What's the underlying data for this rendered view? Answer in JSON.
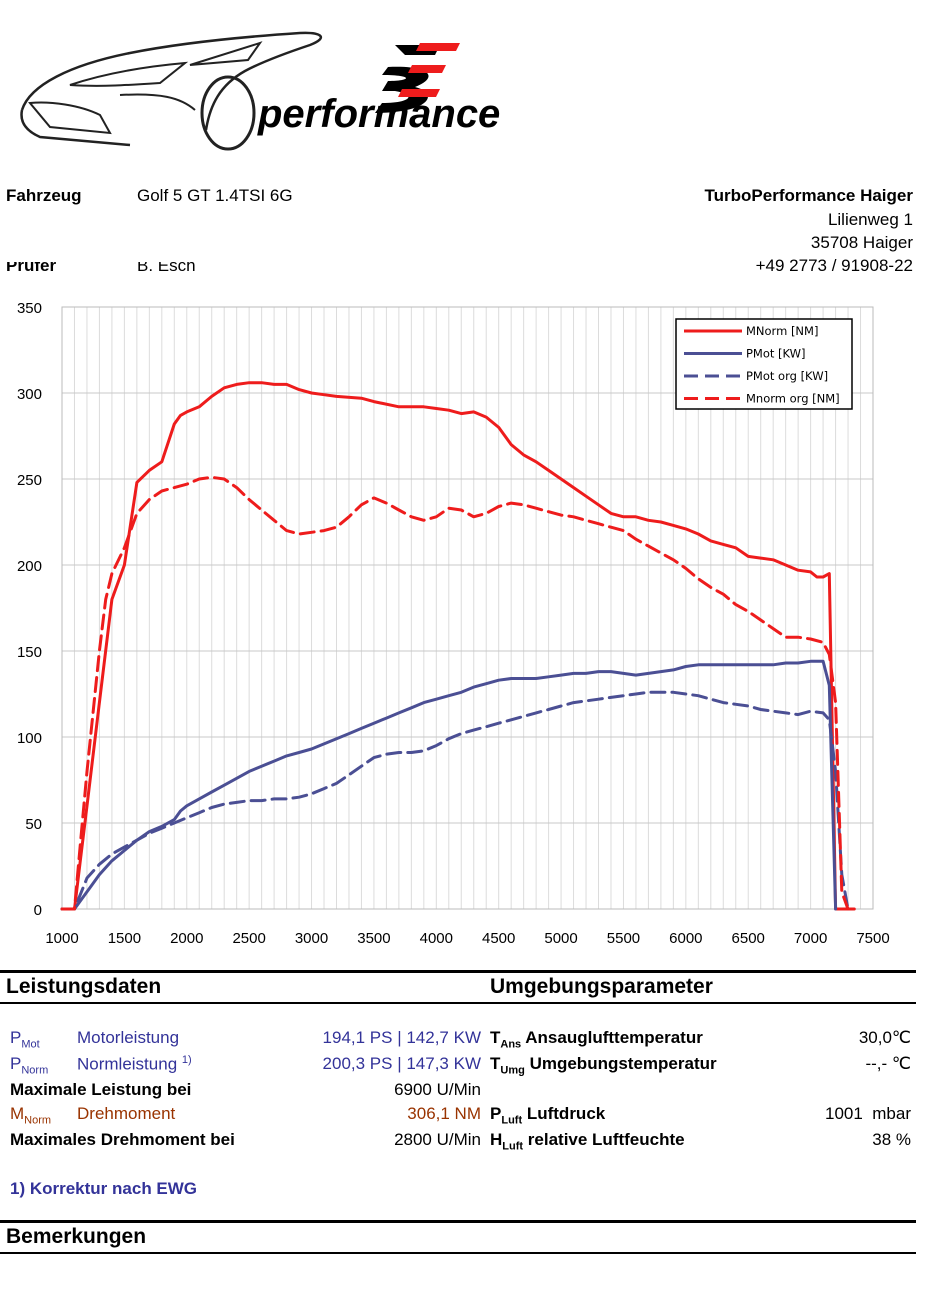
{
  "logo": {
    "brand_letters": "BE",
    "brand_text": "performance"
  },
  "header": {
    "vehicle_label": "Fahrzeug",
    "vehicle_value": "Golf 5 GT 1.4TSI 6G",
    "tester_label": "Prüfer",
    "tester_value": "B. Esch",
    "company": "TurboPerformance Haiger",
    "street": "Lilienweg 1",
    "city": "35708 Haiger",
    "phone": "+49 2773 / 91908-22"
  },
  "chart_data": {
    "type": "line",
    "xlim": [
      1000,
      7500
    ],
    "ylim": [
      0,
      350
    ],
    "x_ticks": [
      "1000",
      "1500",
      "2000",
      "2500",
      "3000",
      "3500",
      "4000",
      "4500",
      "5000",
      "5500",
      "6000",
      "6500",
      "7000",
      "7500"
    ],
    "y_ticks": [
      "0",
      "50",
      "100",
      "150",
      "200",
      "250",
      "300",
      "350"
    ],
    "grid": true,
    "legend_placement": "top-right",
    "series": [
      {
        "name": "MNorm [NM]",
        "color": "#ee1c1c",
        "dash": "solid",
        "x": [
          1000,
          1100,
          1150,
          1200,
          1300,
          1400,
          1500,
          1600,
          1700,
          1800,
          1900,
          1950,
          2000,
          2100,
          2200,
          2300,
          2400,
          2500,
          2600,
          2700,
          2800,
          2900,
          3000,
          3100,
          3200,
          3400,
          3500,
          3700,
          3900,
          4000,
          4100,
          4200,
          4300,
          4400,
          4500,
          4600,
          4700,
          4800,
          4900,
          5000,
          5100,
          5200,
          5300,
          5400,
          5500,
          5600,
          5700,
          5800,
          5900,
          6000,
          6100,
          6200,
          6300,
          6400,
          6500,
          6600,
          6700,
          6800,
          6900,
          7000,
          7050,
          7100,
          7150,
          7200,
          7250,
          7350
        ],
        "y": [
          0,
          0,
          30,
          60,
          120,
          180,
          200,
          248,
          255,
          260,
          282,
          287,
          289,
          292,
          298,
          303,
          305,
          306,
          306,
          305,
          305,
          302,
          300,
          299,
          298,
          297,
          295,
          292,
          292,
          291,
          290,
          288,
          289,
          286,
          280,
          270,
          264,
          260,
          255,
          250,
          245,
          240,
          235,
          230,
          228,
          228,
          226,
          225,
          223,
          221,
          218,
          214,
          212,
          210,
          205,
          204,
          203,
          200,
          197,
          196,
          193,
          193,
          195,
          0,
          0,
          0
        ]
      },
      {
        "name": "PMot [KW]",
        "color": "#4b4f94",
        "dash": "solid",
        "x": [
          1000,
          1100,
          1200,
          1300,
          1400,
          1500,
          1600,
          1700,
          1800,
          1900,
          1950,
          2000,
          2100,
          2200,
          2300,
          2400,
          2500,
          2600,
          2700,
          2800,
          2900,
          3000,
          3100,
          3200,
          3300,
          3400,
          3500,
          3600,
          3700,
          3800,
          3900,
          4000,
          4100,
          4200,
          4300,
          4400,
          4500,
          4600,
          4700,
          4800,
          4900,
          5000,
          5100,
          5200,
          5300,
          5400,
          5500,
          5600,
          5700,
          5800,
          5900,
          6000,
          6100,
          6200,
          6300,
          6400,
          6500,
          6600,
          6700,
          6800,
          6900,
          7000,
          7050,
          7100,
          7150,
          7200
        ],
        "y": [
          0,
          0,
          10,
          20,
          28,
          34,
          40,
          45,
          48,
          52,
          57,
          60,
          64,
          68,
          72,
          76,
          80,
          83,
          86,
          89,
          91,
          93,
          96,
          99,
          102,
          105,
          108,
          111,
          114,
          117,
          120,
          122,
          124,
          126,
          129,
          131,
          133,
          134,
          134,
          134,
          135,
          136,
          137,
          137,
          138,
          138,
          137,
          136,
          137,
          138,
          139,
          141,
          142,
          142,
          142,
          142,
          142,
          142,
          142,
          143,
          143,
          144,
          144,
          144,
          130,
          0
        ]
      },
      {
        "name": "PMot org [KW]",
        "color": "#4b4f94",
        "dash": "dashed",
        "x": [
          1000,
          1100,
          1200,
          1300,
          1400,
          1500,
          1600,
          1700,
          1800,
          1900,
          2000,
          2100,
          2200,
          2300,
          2400,
          2500,
          2600,
          2700,
          2800,
          2900,
          3000,
          3100,
          3200,
          3300,
          3400,
          3500,
          3600,
          3700,
          3800,
          3900,
          4000,
          4100,
          4200,
          4300,
          4400,
          4500,
          4600,
          4700,
          4800,
          4900,
          5000,
          5100,
          5200,
          5300,
          5400,
          5500,
          5600,
          5700,
          5800,
          5900,
          6000,
          6100,
          6200,
          6300,
          6400,
          6500,
          6600,
          6700,
          6800,
          6900,
          7000,
          7100,
          7150,
          7200,
          7250,
          7300
        ],
        "y": [
          0,
          0,
          18,
          26,
          32,
          36,
          40,
          44,
          47,
          50,
          53,
          56,
          59,
          61,
          62,
          63,
          63,
          64,
          64,
          65,
          67,
          70,
          73,
          78,
          83,
          88,
          90,
          91,
          91,
          92,
          95,
          99,
          102,
          104,
          106,
          108,
          110,
          112,
          114,
          116,
          118,
          120,
          121,
          122,
          123,
          124,
          125,
          126,
          126,
          126,
          125,
          124,
          122,
          120,
          119,
          118,
          116,
          115,
          114,
          113,
          115,
          114,
          110,
          80,
          20,
          0
        ]
      },
      {
        "name": "Mnorm org [NM]",
        "color": "#ee1c1c",
        "dash": "dashed",
        "x": [
          1000,
          1100,
          1150,
          1200,
          1300,
          1350,
          1400,
          1500,
          1600,
          1700,
          1800,
          1900,
          2000,
          2100,
          2200,
          2300,
          2400,
          2500,
          2600,
          2700,
          2800,
          2900,
          3000,
          3100,
          3200,
          3300,
          3400,
          3500,
          3600,
          3700,
          3800,
          3900,
          4000,
          4100,
          4200,
          4300,
          4400,
          4500,
          4600,
          4700,
          4800,
          4900,
          5000,
          5100,
          5200,
          5300,
          5400,
          5500,
          5600,
          5700,
          5800,
          5900,
          6000,
          6100,
          6200,
          6300,
          6400,
          6500,
          6600,
          6700,
          6800,
          6900,
          7000,
          7100,
          7150,
          7200,
          7250,
          7300
        ],
        "y": [
          0,
          0,
          40,
          80,
          150,
          180,
          195,
          210,
          230,
          238,
          243,
          245,
          247,
          250,
          251,
          250,
          245,
          238,
          232,
          226,
          220,
          218,
          219,
          220,
          222,
          228,
          235,
          239,
          236,
          232,
          228,
          226,
          228,
          233,
          232,
          228,
          230,
          234,
          236,
          235,
          233,
          231,
          229,
          228,
          226,
          224,
          222,
          220,
          215,
          211,
          207,
          203,
          198,
          192,
          187,
          183,
          177,
          173,
          168,
          163,
          158,
          158,
          157,
          155,
          148,
          120,
          10,
          0
        ]
      }
    ]
  },
  "performance": {
    "title": "Leistungsdaten",
    "pmot_symbol": "P",
    "pmot_sub": "Mot",
    "pmot_label": "Motorleistung",
    "pmot_value": "194,1 PS | 142,7 KW",
    "pnorm_symbol": "P",
    "pnorm_sub": "Norm",
    "pnorm_label": "Normleistung",
    "pnorm_sup": "1)",
    "pnorm_value": "200,3 PS | 147,3 KW",
    "maxpower_label": "Maximale Leistung bei",
    "maxpower_value": "6900 U/Min",
    "mnorm_symbol": "M",
    "mnorm_sub": "Norm",
    "mnorm_label": "Drehmoment",
    "mnorm_value": "306,1 NM",
    "maxtorque_label": "Maximales Drehmoment bei",
    "maxtorque_value": "2800 U/Min",
    "footnote": "1) Korrektur nach EWG"
  },
  "environment": {
    "title": "Umgebungsparameter",
    "tans_symbol": "T",
    "tans_sub": "Ans",
    "tans_label": "Ansauglufttemperatur",
    "tans_value": "30,0℃",
    "tumg_symbol": "T",
    "tumg_sub": "Umg",
    "tumg_label": "Umgebungstemperatur",
    "tumg_value": "--,- ℃",
    "pluft_symbol": "P",
    "pluft_sub": "Luft",
    "pluft_label": "Luftdruck",
    "pluft_value": "1001  mbar",
    "hluft_symbol": "H",
    "hluft_sub": "Luft",
    "hluft_label": "relative Luftfeuchte",
    "hluft_value": "38 %"
  },
  "remarks": {
    "title": "Bemerkungen"
  }
}
